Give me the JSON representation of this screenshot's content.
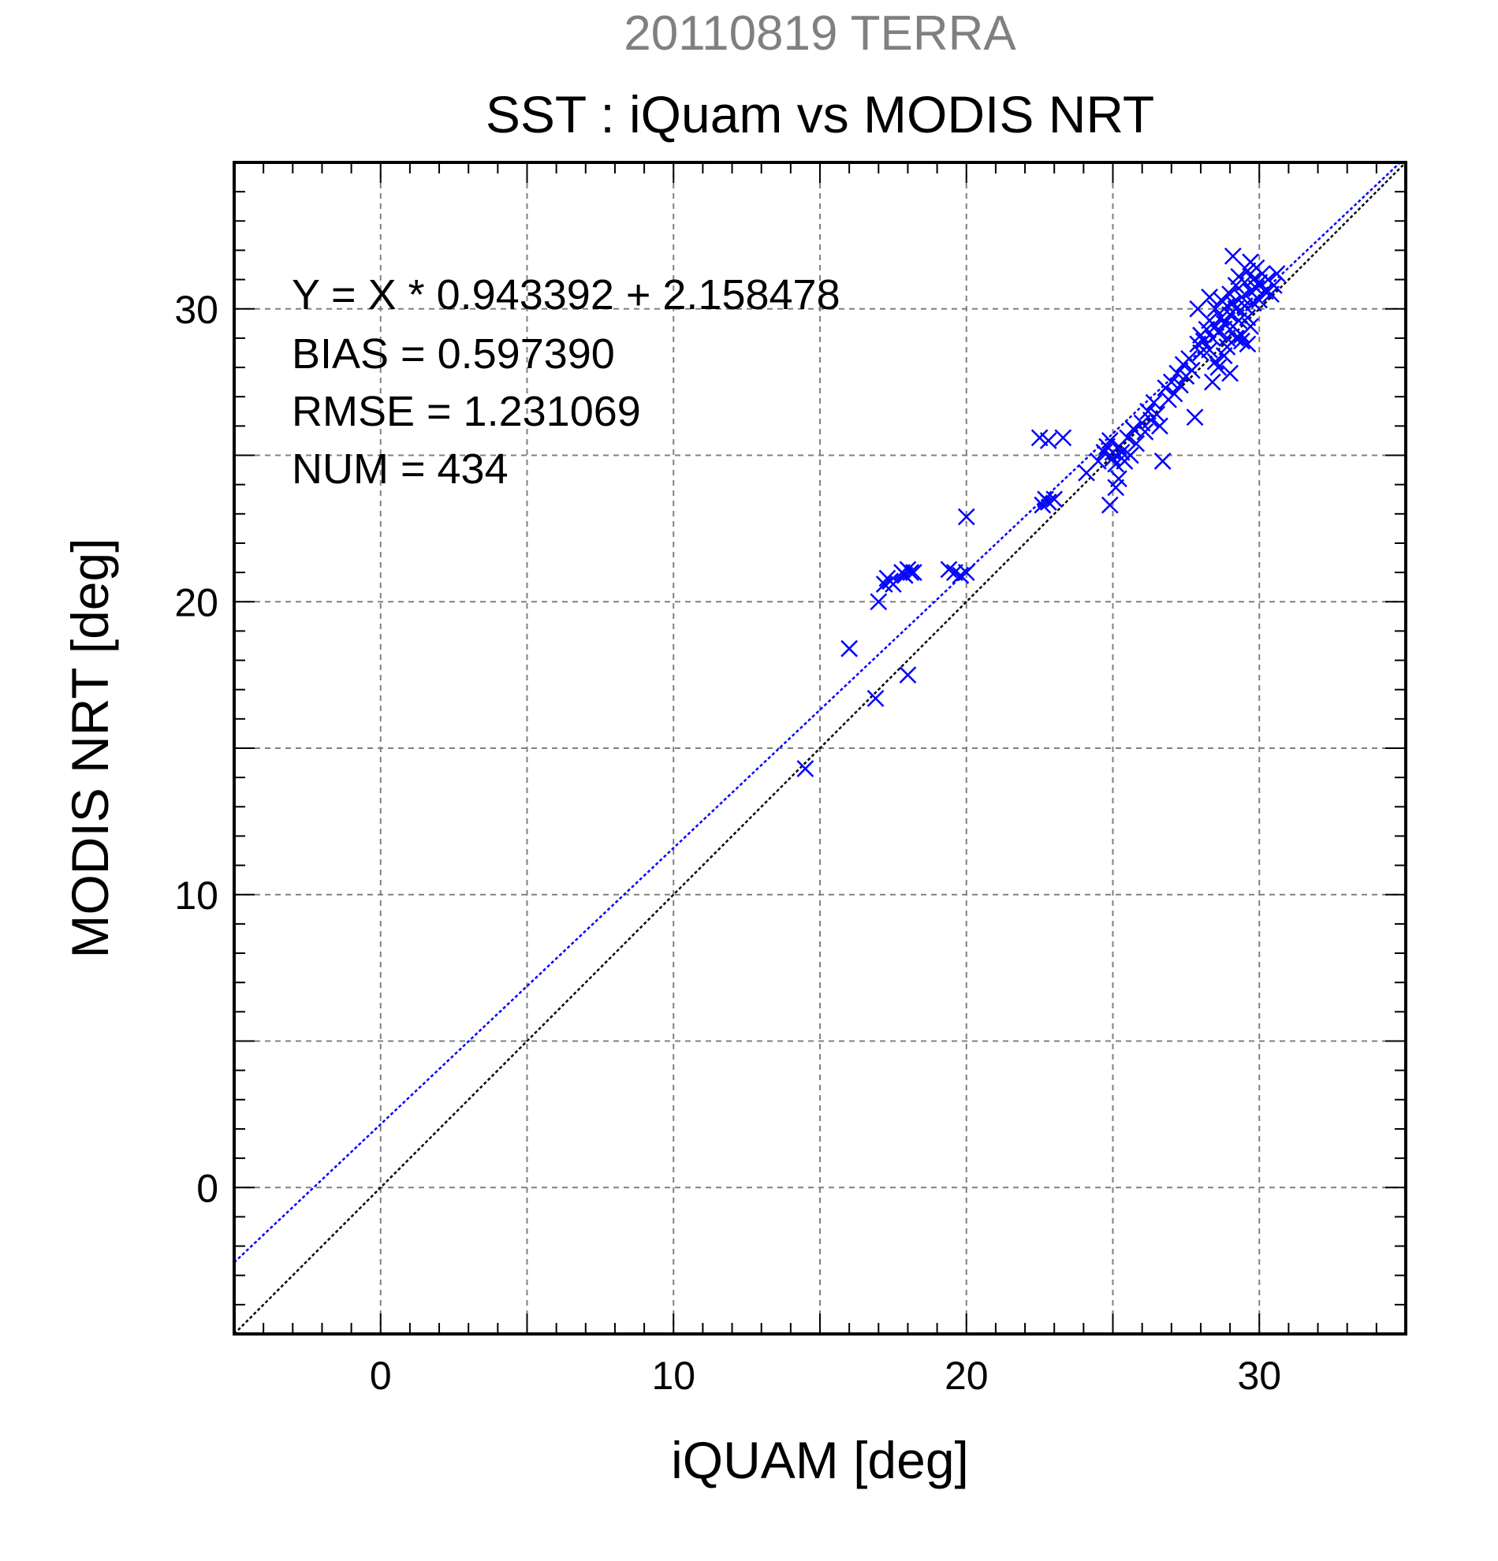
{
  "chart_data": {
    "type": "scatter",
    "supertitle": "20110819 TERRA",
    "title": "SST : iQuam vs MODIS NRT",
    "xlabel": "iQUAM [deg]",
    "ylabel": "MODIS NRT [deg]",
    "xlim": [
      -5,
      35
    ],
    "ylim": [
      -5,
      35
    ],
    "xticks": [
      0,
      10,
      20,
      30
    ],
    "yticks": [
      0,
      10,
      20,
      30
    ],
    "minor_tick_step": 1,
    "grid": true,
    "grid_step": 5,
    "stats": [
      "Y = X * 0.943392 + 2.158478",
      "BIAS = 0.597390",
      "RMSE = 1.231069",
      "NUM = 434"
    ],
    "lines": [
      {
        "kind": "identity",
        "slope": 1,
        "intercept": 0,
        "color": "#000000"
      },
      {
        "kind": "regression",
        "slope": 0.943392,
        "intercept": 2.158478,
        "color": "#0000ff"
      }
    ],
    "marker": "x",
    "marker_color": "#0000ff",
    "points": [
      [
        14.5,
        14.3
      ],
      [
        16.0,
        18.4
      ],
      [
        16.9,
        16.7
      ],
      [
        17.0,
        20.0
      ],
      [
        18.0,
        17.5
      ],
      [
        17.2,
        20.6
      ],
      [
        17.3,
        20.8
      ],
      [
        17.4,
        20.7
      ],
      [
        17.5,
        20.6
      ],
      [
        17.8,
        21.0
      ],
      [
        17.9,
        20.9
      ],
      [
        18.0,
        21.1
      ],
      [
        18.1,
        21.0
      ],
      [
        18.2,
        21.0
      ],
      [
        19.4,
        21.1
      ],
      [
        19.6,
        21.0
      ],
      [
        19.8,
        20.9
      ],
      [
        20.0,
        21.0
      ],
      [
        20.0,
        22.9
      ],
      [
        22.5,
        25.6
      ],
      [
        22.8,
        25.5
      ],
      [
        23.3,
        25.6
      ],
      [
        22.6,
        23.3
      ],
      [
        22.7,
        23.5
      ],
      [
        22.8,
        23.4
      ],
      [
        23.0,
        23.5
      ],
      [
        24.1,
        24.4
      ],
      [
        24.5,
        24.8
      ],
      [
        24.7,
        25.1
      ],
      [
        24.8,
        25.3
      ],
      [
        24.9,
        25.5
      ],
      [
        25.0,
        24.9
      ],
      [
        25.0,
        25.1
      ],
      [
        25.1,
        24.7
      ],
      [
        25.2,
        25.3
      ],
      [
        25.3,
        25.1
      ],
      [
        24.9,
        23.3
      ],
      [
        25.1,
        23.9
      ],
      [
        25.2,
        24.2
      ],
      [
        25.4,
        24.8
      ],
      [
        25.5,
        25.6
      ],
      [
        25.6,
        25.0
      ],
      [
        25.7,
        25.9
      ],
      [
        25.8,
        25.4
      ],
      [
        26.0,
        26.1
      ],
      [
        26.1,
        25.8
      ],
      [
        26.2,
        26.5
      ],
      [
        26.3,
        26.2
      ],
      [
        26.4,
        26.8
      ],
      [
        26.5,
        26.4
      ],
      [
        26.6,
        26.0
      ],
      [
        26.7,
        24.8
      ],
      [
        26.8,
        27.3
      ],
      [
        26.9,
        26.9
      ],
      [
        27.0,
        27.5
      ],
      [
        27.1,
        27.1
      ],
      [
        27.2,
        27.8
      ],
      [
        27.3,
        27.4
      ],
      [
        27.4,
        28.1
      ],
      [
        27.5,
        27.7
      ],
      [
        27.6,
        28.3
      ],
      [
        27.7,
        27.9
      ],
      [
        27.8,
        26.3
      ],
      [
        27.9,
        28.8
      ],
      [
        28.0,
        28.5
      ],
      [
        28.0,
        29.1
      ],
      [
        28.1,
        28.9
      ],
      [
        28.2,
        29.3
      ],
      [
        28.3,
        28.6
      ],
      [
        28.3,
        29.6
      ],
      [
        28.4,
        29.0
      ],
      [
        28.4,
        27.5
      ],
      [
        28.5,
        29.4
      ],
      [
        28.5,
        30.0
      ],
      [
        28.6,
        29.2
      ],
      [
        28.6,
        28.0
      ],
      [
        28.7,
        29.7
      ],
      [
        28.7,
        30.3
      ],
      [
        28.8,
        29.5
      ],
      [
        28.8,
        28.4
      ],
      [
        28.9,
        30.1
      ],
      [
        28.9,
        29.0
      ],
      [
        29.0,
        30.5
      ],
      [
        29.0,
        29.8
      ],
      [
        29.0,
        27.8
      ],
      [
        29.1,
        30.2
      ],
      [
        29.1,
        29.4
      ],
      [
        29.2,
        30.8
      ],
      [
        29.2,
        30.0
      ],
      [
        29.3,
        31.1
      ],
      [
        29.3,
        29.6
      ],
      [
        29.4,
        30.4
      ],
      [
        29.4,
        29.1
      ],
      [
        29.5,
        30.9
      ],
      [
        29.5,
        30.1
      ],
      [
        29.6,
        31.3
      ],
      [
        29.6,
        29.7
      ],
      [
        29.7,
        30.6
      ],
      [
        29.7,
        31.6
      ],
      [
        29.8,
        30.2
      ],
      [
        29.8,
        31.0
      ],
      [
        29.9,
        30.7
      ],
      [
        29.9,
        31.4
      ],
      [
        30.0,
        30.3
      ],
      [
        30.0,
        30.9
      ],
      [
        30.1,
        31.2
      ],
      [
        30.2,
        30.6
      ],
      [
        30.3,
        31.0
      ],
      [
        30.5,
        30.8
      ],
      [
        30.6,
        31.2
      ],
      [
        28.9,
        28.7
      ],
      [
        29.4,
        28.9
      ],
      [
        29.6,
        28.8
      ],
      [
        29.1,
        31.8
      ],
      [
        28.3,
        30.4
      ],
      [
        27.9,
        30.0
      ],
      [
        28.5,
        28.2
      ],
      [
        29.2,
        29.0
      ],
      [
        29.7,
        29.4
      ],
      [
        30.4,
        30.5
      ]
    ]
  }
}
